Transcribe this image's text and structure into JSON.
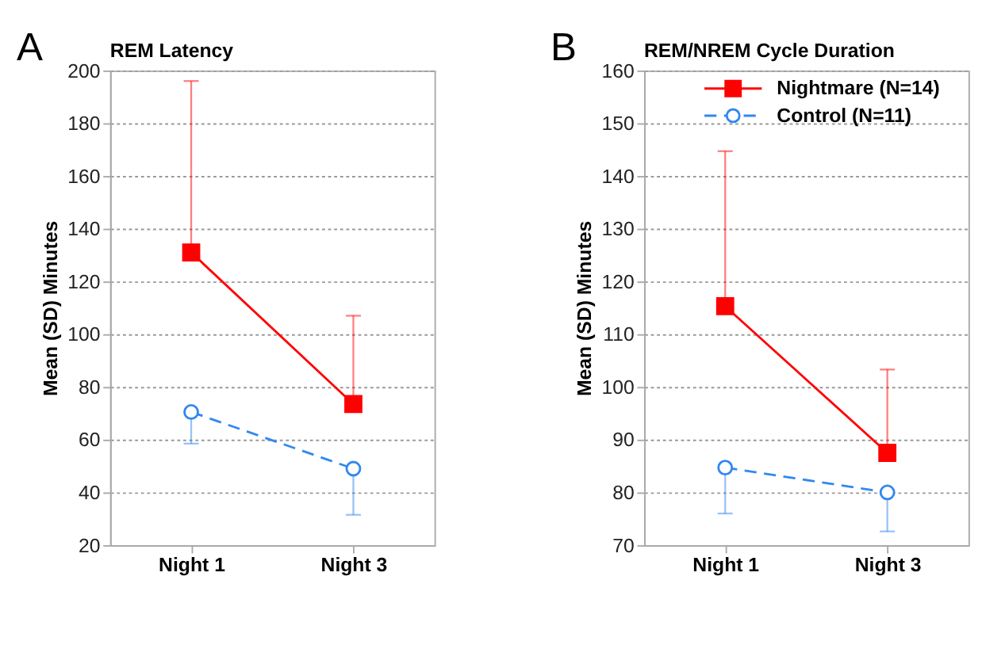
{
  "chart_data": [
    {
      "type": "line",
      "title": "REM Latency",
      "ylabel": "Mean (SD) Minutes",
      "categories": [
        "Night 1",
        "Night 3"
      ],
      "ylim": [
        20,
        200
      ],
      "yticks": [
        20,
        40,
        60,
        80,
        100,
        120,
        140,
        160,
        180,
        200
      ],
      "grid": "y",
      "annotations": [
        "A"
      ],
      "series": [
        {
          "color": "#ff0000",
          "values": [
            131,
            73.5
          ],
          "errors": [
            [
              131,
              196
            ],
            [
              73.5,
              107
            ]
          ],
          "marker": "square",
          "line_style": "solid"
        },
        {
          "color": "#3388ee",
          "values": [
            70.5,
            49
          ],
          "errors": [
            [
              58.5,
              70.5
            ],
            [
              31.5,
              49
            ]
          ],
          "marker": "circle",
          "line_style": "dashed"
        }
      ]
    },
    {
      "type": "line",
      "title": "REM/NREM Cycle Duration",
      "ylabel": "Mean (SD) Minutes",
      "categories": [
        "Night 1",
        "Night 3"
      ],
      "ylim": [
        70,
        160
      ],
      "yticks": [
        70,
        80,
        90,
        100,
        110,
        120,
        130,
        140,
        150,
        160
      ],
      "grid": "y",
      "legend": "top right",
      "annotations": [
        "B"
      ],
      "series": [
        {
          "name": "Nightmare (N=14)",
          "color": "#ff0000",
          "values": [
            115.3,
            87.5
          ],
          "errors": [
            [
              115.3,
              144.7
            ],
            [
              87.5,
              103.3
            ]
          ],
          "marker": "square",
          "line_style": "solid"
        },
        {
          "name": "Control (N=11)",
          "color": "#3388ee",
          "values": [
            84.7,
            80
          ],
          "errors": [
            [
              76,
              84.7
            ],
            [
              72.6,
              80
            ]
          ],
          "marker": "circle",
          "line_style": "dashed"
        }
      ]
    }
  ]
}
